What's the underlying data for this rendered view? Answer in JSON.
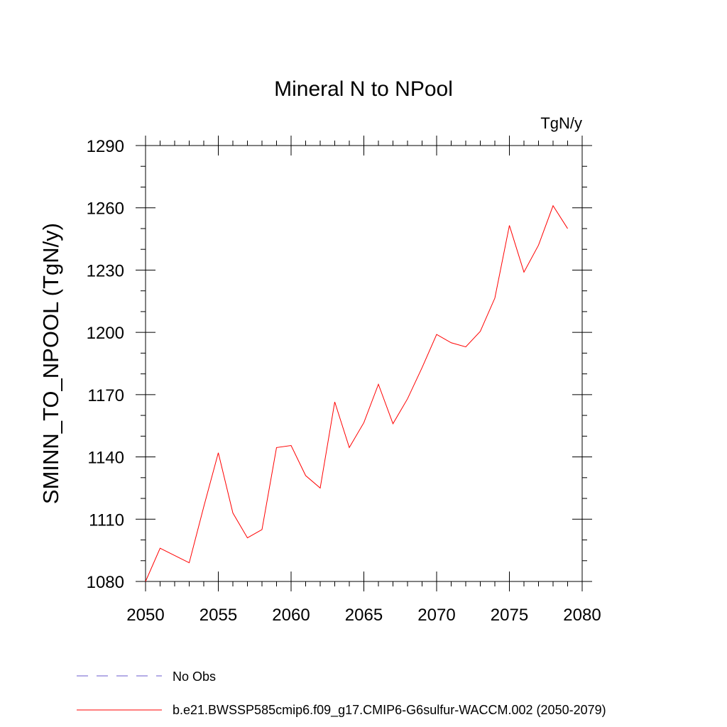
{
  "chart_data": {
    "type": "line",
    "title": "Mineral N to NPool",
    "units": "TgN/y",
    "ylabel": "SMINN_TO_NPOOL  (TgN/y)",
    "xlabel": "",
    "xlim": [
      2050,
      2080
    ],
    "ylim": [
      1080,
      1290
    ],
    "x_ticks": [
      2050,
      2055,
      2060,
      2065,
      2070,
      2075,
      2080
    ],
    "y_ticks": [
      1080,
      1110,
      1140,
      1170,
      1200,
      1230,
      1260,
      1290
    ],
    "x_tick_labels": [
      "2050",
      "2055",
      "2060",
      "2065",
      "2070",
      "2075",
      "2080"
    ],
    "y_tick_labels": [
      "1080",
      "1110",
      "1140",
      "1170",
      "1200",
      "1230",
      "1260",
      "1290"
    ],
    "x": [
      2050,
      2051,
      2052,
      2053,
      2054,
      2055,
      2056,
      2057,
      2058,
      2059,
      2060,
      2061,
      2062,
      2063,
      2064,
      2065,
      2066,
      2067,
      2068,
      2069,
      2070,
      2071,
      2072,
      2073,
      2074,
      2075,
      2076,
      2077,
      2078,
      2079
    ],
    "series": [
      {
        "name": "b.e21.BWSSP585cmip6.f09_g17.CMIP6-G6sulfur-WACCM.002 (2050-2079)",
        "color": "#ff0000",
        "values": [
          1080,
          1096,
          1092.5,
          1089,
          1116,
          1142,
          1113,
          1101,
          1105,
          1144.5,
          1145.5,
          1131,
          1125,
          1166.5,
          1144.5,
          1156.5,
          1175,
          1156,
          1168,
          1183,
          1199,
          1195,
          1193,
          1200.5,
          1216.5,
          1251.5,
          1229,
          1242,
          1261,
          1250
        ]
      }
    ],
    "legend": {
      "placement": "bottom-left",
      "entries": [
        {
          "label": "No Obs",
          "color": "#6a5acd",
          "style": "dashed"
        },
        {
          "label": "b.e21.BWSSP585cmip6.f09_g17.CMIP6-G6sulfur-WACCM.002 (2050-2079)",
          "color": "#ff0000",
          "style": "solid"
        }
      ]
    },
    "grid": false
  }
}
